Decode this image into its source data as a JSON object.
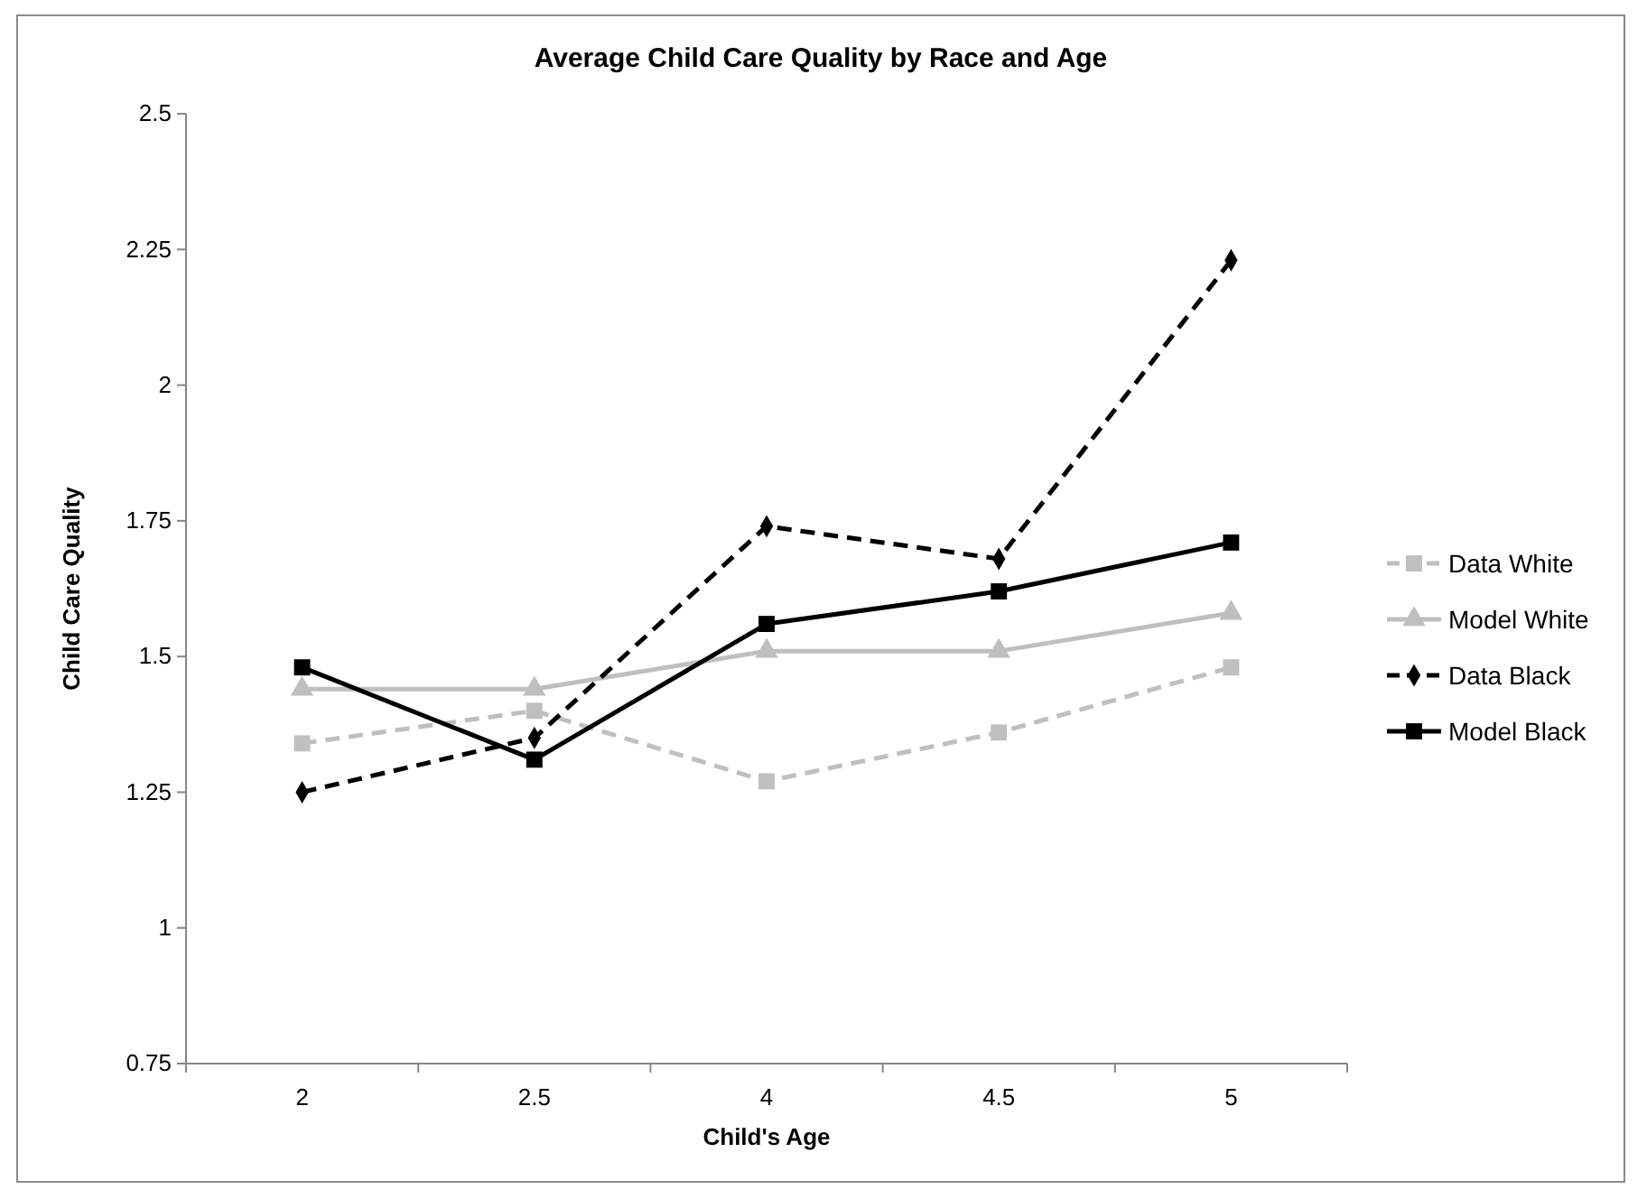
{
  "chart_data": {
    "type": "line",
    "title": "Average Child Care Quality by Race and Age",
    "xlabel": "Child's Age",
    "ylabel": "Child Care Quality",
    "categories": [
      "2",
      "2.5",
      "4",
      "4.5",
      "5"
    ],
    "series": [
      {
        "name": "Data White",
        "color": "#bfbfbf",
        "marker": "square",
        "line_style": "dashed",
        "values": [
          1.34,
          1.4,
          1.27,
          1.36,
          1.48
        ]
      },
      {
        "name": "Model White",
        "color": "#bfbfbf",
        "marker": "triangle",
        "line_style": "solid",
        "values": [
          1.44,
          1.44,
          1.51,
          1.51,
          1.58
        ]
      },
      {
        "name": "Data Black",
        "color": "#000000",
        "marker": "diamond",
        "line_style": "dashed",
        "values": [
          1.25,
          1.35,
          1.74,
          1.68,
          2.23
        ]
      },
      {
        "name": "Model Black",
        "color": "#000000",
        "marker": "square",
        "line_style": "solid",
        "values": [
          1.48,
          1.31,
          1.56,
          1.62,
          1.71
        ]
      }
    ],
    "ylim": [
      0.75,
      2.5
    ],
    "yticks": [
      0.75,
      1,
      1.25,
      1.5,
      1.75,
      2,
      2.25,
      2.5
    ],
    "grid": false,
    "legend": "right"
  }
}
